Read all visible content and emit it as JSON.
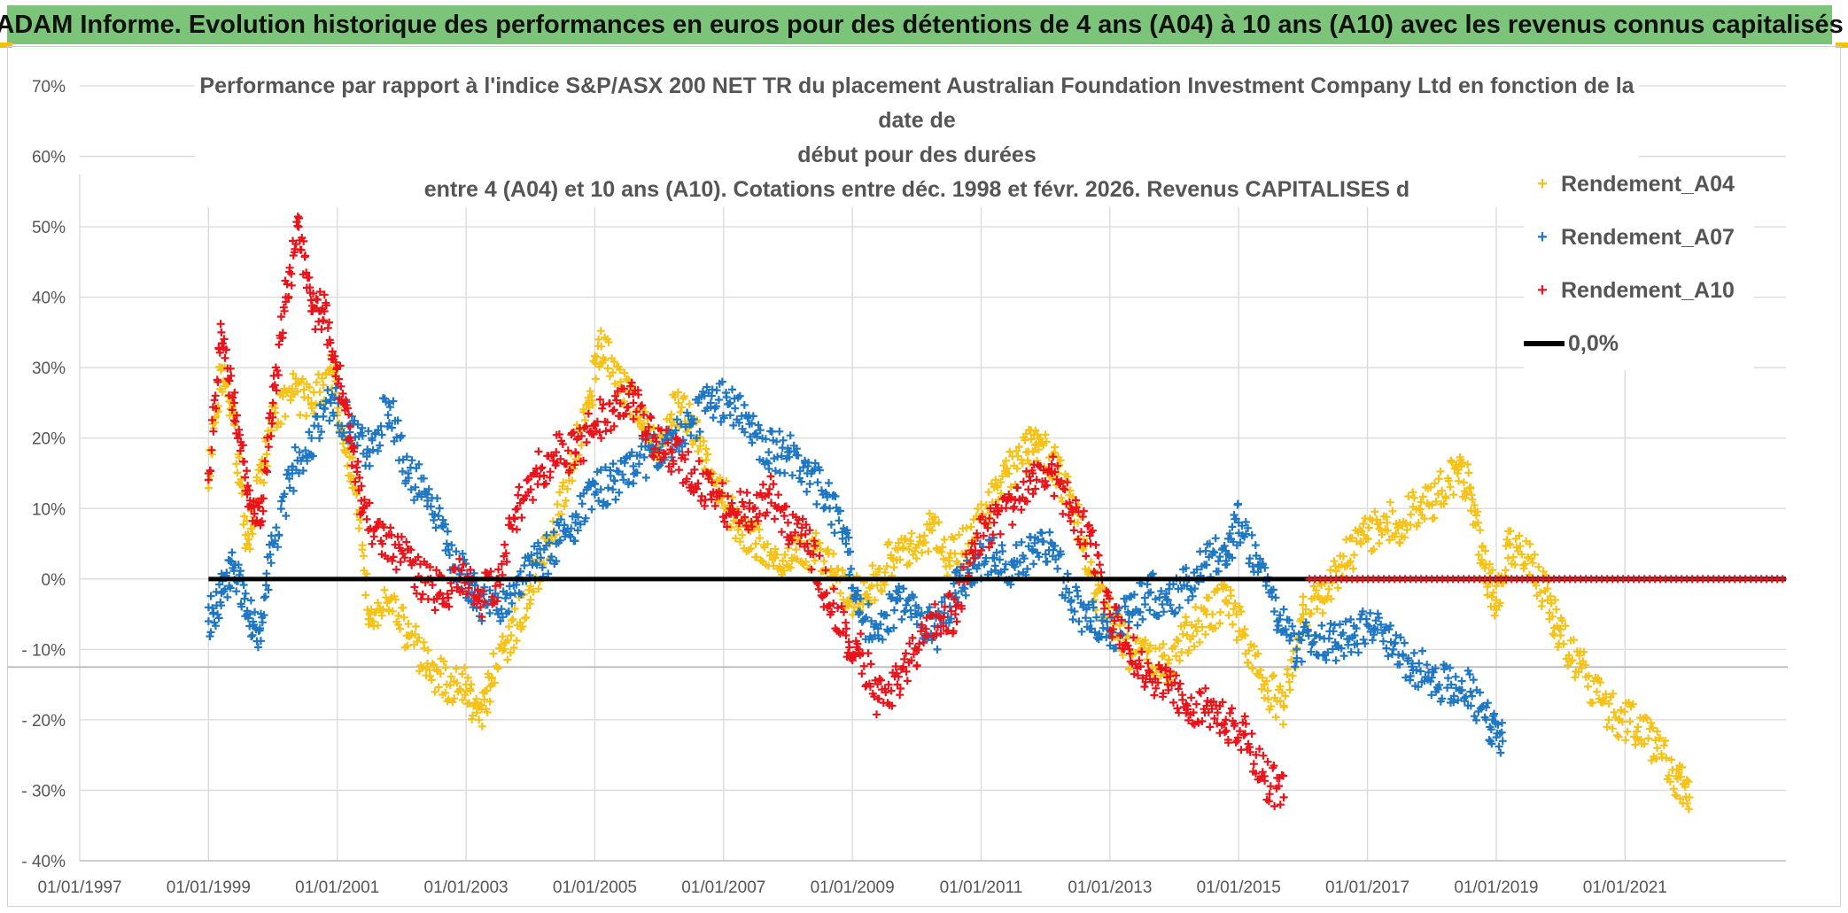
{
  "banner": {
    "title": "ADAM Informe. Evolution historique des performances en euros pour des détentions de 4 ans (A04) à 10 ans (A10) avec les revenus connus capitalisés"
  },
  "chart_data": {
    "type": "scatter",
    "title_lines": [
      "Performance par rapport à l'indice S&P/ASX 200 NET TR  du placement Australian Foundation Investment Company Ltd en fonction de la date de",
      "début pour des durées",
      "entre 4 (A04) et 10 ans (A10). Cotations entre déc. 1998 et févr. 2026. Revenus CAPITALISES d"
    ],
    "x_axis": {
      "min_year": 1997,
      "max_year": 2023.5,
      "tick_years": [
        1997,
        1999,
        2001,
        2003,
        2005,
        2007,
        2009,
        2011,
        2013,
        2015,
        2017,
        2019,
        2021
      ],
      "tick_labels": [
        "01/01/1997",
        "01/01/1999",
        "01/01/2001",
        "01/01/2003",
        "01/01/2005",
        "01/01/2007",
        "01/01/2009",
        "01/01/2011",
        "01/01/2013",
        "01/01/2015",
        "01/01/2017",
        "01/01/2019",
        "01/01/2021"
      ]
    },
    "y_axis": {
      "min": -40,
      "max": 70,
      "tick_values": [
        70,
        60,
        50,
        40,
        30,
        20,
        10,
        0,
        -10,
        -20,
        -30,
        -40
      ],
      "tick_labels": [
        "70%",
        "60%",
        "50%",
        "40%",
        "30%",
        "20%",
        "10%",
        "0%",
        "- 10%",
        "- 20%",
        "- 30%",
        "- 40%"
      ]
    },
    "grid": true,
    "legend_position": "top-right",
    "reference_line": {
      "name": "0,0%",
      "value": 0,
      "color": "#000000"
    },
    "series": [
      {
        "name": "Rendement_A04",
        "color": "#f5c218",
        "marker": "+",
        "points": [
          [
            1999.0,
            14
          ],
          [
            1999.2,
            30
          ],
          [
            1999.4,
            22
          ],
          [
            1999.6,
            5
          ],
          [
            1999.8,
            14
          ],
          [
            2000.0,
            22
          ],
          [
            2000.3,
            27
          ],
          [
            2000.6,
            25
          ],
          [
            2000.9,
            30
          ],
          [
            2001.1,
            20
          ],
          [
            2001.3,
            12
          ],
          [
            2001.5,
            -5
          ],
          [
            2001.8,
            -3
          ],
          [
            2002.1,
            -8
          ],
          [
            2002.4,
            -12
          ],
          [
            2002.7,
            -15
          ],
          [
            2003.0,
            -15
          ],
          [
            2003.2,
            -20
          ],
          [
            2003.4,
            -14
          ],
          [
            2003.7,
            -8
          ],
          [
            2004.0,
            -1
          ],
          [
            2004.3,
            5
          ],
          [
            2004.6,
            15
          ],
          [
            2004.9,
            25
          ],
          [
            2005.1,
            33
          ],
          [
            2005.4,
            28
          ],
          [
            2005.7,
            23
          ],
          [
            2006.0,
            19
          ],
          [
            2006.3,
            25
          ],
          [
            2006.6,
            20
          ],
          [
            2006.9,
            14
          ],
          [
            2007.2,
            8
          ],
          [
            2007.5,
            5
          ],
          [
            2007.8,
            3
          ],
          [
            2008.1,
            3
          ],
          [
            2008.4,
            4
          ],
          [
            2008.7,
            1
          ],
          [
            2009.0,
            -3
          ],
          [
            2009.3,
            -1
          ],
          [
            2009.6,
            3
          ],
          [
            2009.9,
            5
          ],
          [
            2010.2,
            7
          ],
          [
            2010.5,
            3
          ],
          [
            2010.8,
            5
          ],
          [
            2011.1,
            10
          ],
          [
            2011.4,
            15
          ],
          [
            2011.7,
            18
          ],
          [
            2011.9,
            20
          ],
          [
            2012.2,
            15
          ],
          [
            2012.5,
            8
          ],
          [
            2012.8,
            -2
          ],
          [
            2013.0,
            -5
          ],
          [
            2013.3,
            -10
          ],
          [
            2013.6,
            -12
          ],
          [
            2013.9,
            -12
          ],
          [
            2014.2,
            -8
          ],
          [
            2014.5,
            -5
          ],
          [
            2014.8,
            -3
          ],
          [
            2015.1,
            -8
          ],
          [
            2015.4,
            -15
          ],
          [
            2015.7,
            -18
          ],
          [
            2016.0,
            -5
          ],
          [
            2016.3,
            -3
          ],
          [
            2016.6,
            2
          ],
          [
            2016.9,
            5
          ],
          [
            2017.2,
            8
          ],
          [
            2017.5,
            8
          ],
          [
            2017.8,
            10
          ],
          [
            2018.1,
            12
          ],
          [
            2018.4,
            15
          ],
          [
            2018.6,
            13
          ],
          [
            2018.8,
            2
          ],
          [
            2019.0,
            -3
          ],
          [
            2019.2,
            5
          ],
          [
            2019.5,
            3
          ],
          [
            2019.8,
            -3
          ],
          [
            2020.0,
            -8
          ],
          [
            2020.3,
            -12
          ],
          [
            2020.6,
            -17
          ],
          [
            2020.9,
            -20
          ],
          [
            2021.2,
            -21
          ],
          [
            2021.5,
            -24
          ],
          [
            2021.8,
            -28
          ],
          [
            2022.0,
            -31
          ]
        ]
      },
      {
        "name": "Rendement_A07",
        "color": "#1f77c2",
        "marker": "+",
        "points": [
          [
            1999.0,
            -6
          ],
          [
            1999.2,
            -2
          ],
          [
            1999.4,
            2
          ],
          [
            1999.6,
            -5
          ],
          [
            1999.8,
            -7
          ],
          [
            2000.0,
            5
          ],
          [
            2000.3,
            15
          ],
          [
            2000.6,
            20
          ],
          [
            2000.9,
            25
          ],
          [
            2001.2,
            22
          ],
          [
            2001.5,
            18
          ],
          [
            2001.8,
            25
          ],
          [
            2002.1,
            15
          ],
          [
            2002.4,
            12
          ],
          [
            2002.7,
            5
          ],
          [
            2003.0,
            0
          ],
          [
            2003.2,
            -3
          ],
          [
            2003.5,
            -5
          ],
          [
            2003.8,
            0
          ],
          [
            2004.1,
            2
          ],
          [
            2004.4,
            5
          ],
          [
            2004.7,
            8
          ],
          [
            2005.0,
            12
          ],
          [
            2005.3,
            14
          ],
          [
            2005.6,
            16
          ],
          [
            2005.9,
            18
          ],
          [
            2006.2,
            20
          ],
          [
            2006.5,
            22
          ],
          [
            2006.8,
            25
          ],
          [
            2007.1,
            25
          ],
          [
            2007.4,
            22
          ],
          [
            2007.7,
            18
          ],
          [
            2008.0,
            18
          ],
          [
            2008.3,
            15
          ],
          [
            2008.6,
            12
          ],
          [
            2008.9,
            5
          ],
          [
            2009.1,
            -5
          ],
          [
            2009.4,
            -8
          ],
          [
            2009.7,
            -3
          ],
          [
            2010.0,
            -5
          ],
          [
            2010.3,
            -8
          ],
          [
            2010.6,
            -2
          ],
          [
            2010.9,
            2
          ],
          [
            2011.2,
            3
          ],
          [
            2011.5,
            2
          ],
          [
            2011.8,
            4
          ],
          [
            2012.1,
            5
          ],
          [
            2012.4,
            -3
          ],
          [
            2012.7,
            -6
          ],
          [
            2013.0,
            -8
          ],
          [
            2013.3,
            -5
          ],
          [
            2013.6,
            -2
          ],
          [
            2013.9,
            -3
          ],
          [
            2014.2,
            -1
          ],
          [
            2014.5,
            2
          ],
          [
            2014.8,
            4
          ],
          [
            2015.0,
            8
          ],
          [
            2015.3,
            2
          ],
          [
            2015.6,
            -6
          ],
          [
            2015.9,
            -10
          ],
          [
            2016.2,
            -8
          ],
          [
            2016.5,
            -9
          ],
          [
            2016.8,
            -8
          ],
          [
            2017.1,
            -7
          ],
          [
            2017.4,
            -10
          ],
          [
            2017.7,
            -12
          ],
          [
            2018.0,
            -14
          ],
          [
            2018.3,
            -15
          ],
          [
            2018.6,
            -16
          ],
          [
            2018.9,
            -21
          ],
          [
            2019.1,
            -23
          ]
        ]
      },
      {
        "name": "Rendement_A10",
        "color": "#e8141b",
        "marker": "+",
        "points": [
          [
            1999.0,
            15
          ],
          [
            1999.2,
            35
          ],
          [
            1999.4,
            25
          ],
          [
            1999.6,
            12
          ],
          [
            1999.8,
            8
          ],
          [
            2000.0,
            25
          ],
          [
            2000.2,
            40
          ],
          [
            2000.4,
            50
          ],
          [
            2000.6,
            38
          ],
          [
            2000.8,
            38
          ],
          [
            2001.0,
            30
          ],
          [
            2001.2,
            20
          ],
          [
            2001.4,
            10
          ],
          [
            2001.7,
            5
          ],
          [
            2002.0,
            4
          ],
          [
            2002.3,
            0
          ],
          [
            2002.6,
            -2
          ],
          [
            2002.9,
            0
          ],
          [
            2003.2,
            -3
          ],
          [
            2003.5,
            0
          ],
          [
            2003.8,
            10
          ],
          [
            2004.1,
            15
          ],
          [
            2004.4,
            18
          ],
          [
            2004.7,
            18
          ],
          [
            2005.0,
            22
          ],
          [
            2005.3,
            24
          ],
          [
            2005.6,
            25
          ],
          [
            2005.9,
            20
          ],
          [
            2006.2,
            18
          ],
          [
            2006.5,
            15
          ],
          [
            2006.8,
            12
          ],
          [
            2007.1,
            10
          ],
          [
            2007.4,
            10
          ],
          [
            2007.7,
            12
          ],
          [
            2008.0,
            8
          ],
          [
            2008.3,
            5
          ],
          [
            2008.6,
            -2
          ],
          [
            2008.9,
            -8
          ],
          [
            2009.1,
            -10
          ],
          [
            2009.4,
            -17
          ],
          [
            2009.7,
            -15
          ],
          [
            2010.0,
            -10
          ],
          [
            2010.3,
            -5
          ],
          [
            2010.6,
            -5
          ],
          [
            2010.9,
            5
          ],
          [
            2011.2,
            8
          ],
          [
            2011.5,
            10
          ],
          [
            2011.8,
            15
          ],
          [
            2012.1,
            15
          ],
          [
            2012.4,
            10
          ],
          [
            2012.7,
            5
          ],
          [
            2013.0,
            -5
          ],
          [
            2013.3,
            -10
          ],
          [
            2013.6,
            -13
          ],
          [
            2013.9,
            -15
          ],
          [
            2014.2,
            -18
          ],
          [
            2014.5,
            -18
          ],
          [
            2014.8,
            -20
          ],
          [
            2015.1,
            -22
          ],
          [
            2015.4,
            -28
          ],
          [
            2015.7,
            -31
          ]
        ]
      }
    ]
  },
  "legend": {
    "items": [
      {
        "label": "Rendement_A04",
        "symbol": "+"
      },
      {
        "label": "Rendement_A07",
        "symbol": "+"
      },
      {
        "label": "Rendement_A10",
        "symbol": "+"
      }
    ],
    "line_label": "0,0%"
  }
}
